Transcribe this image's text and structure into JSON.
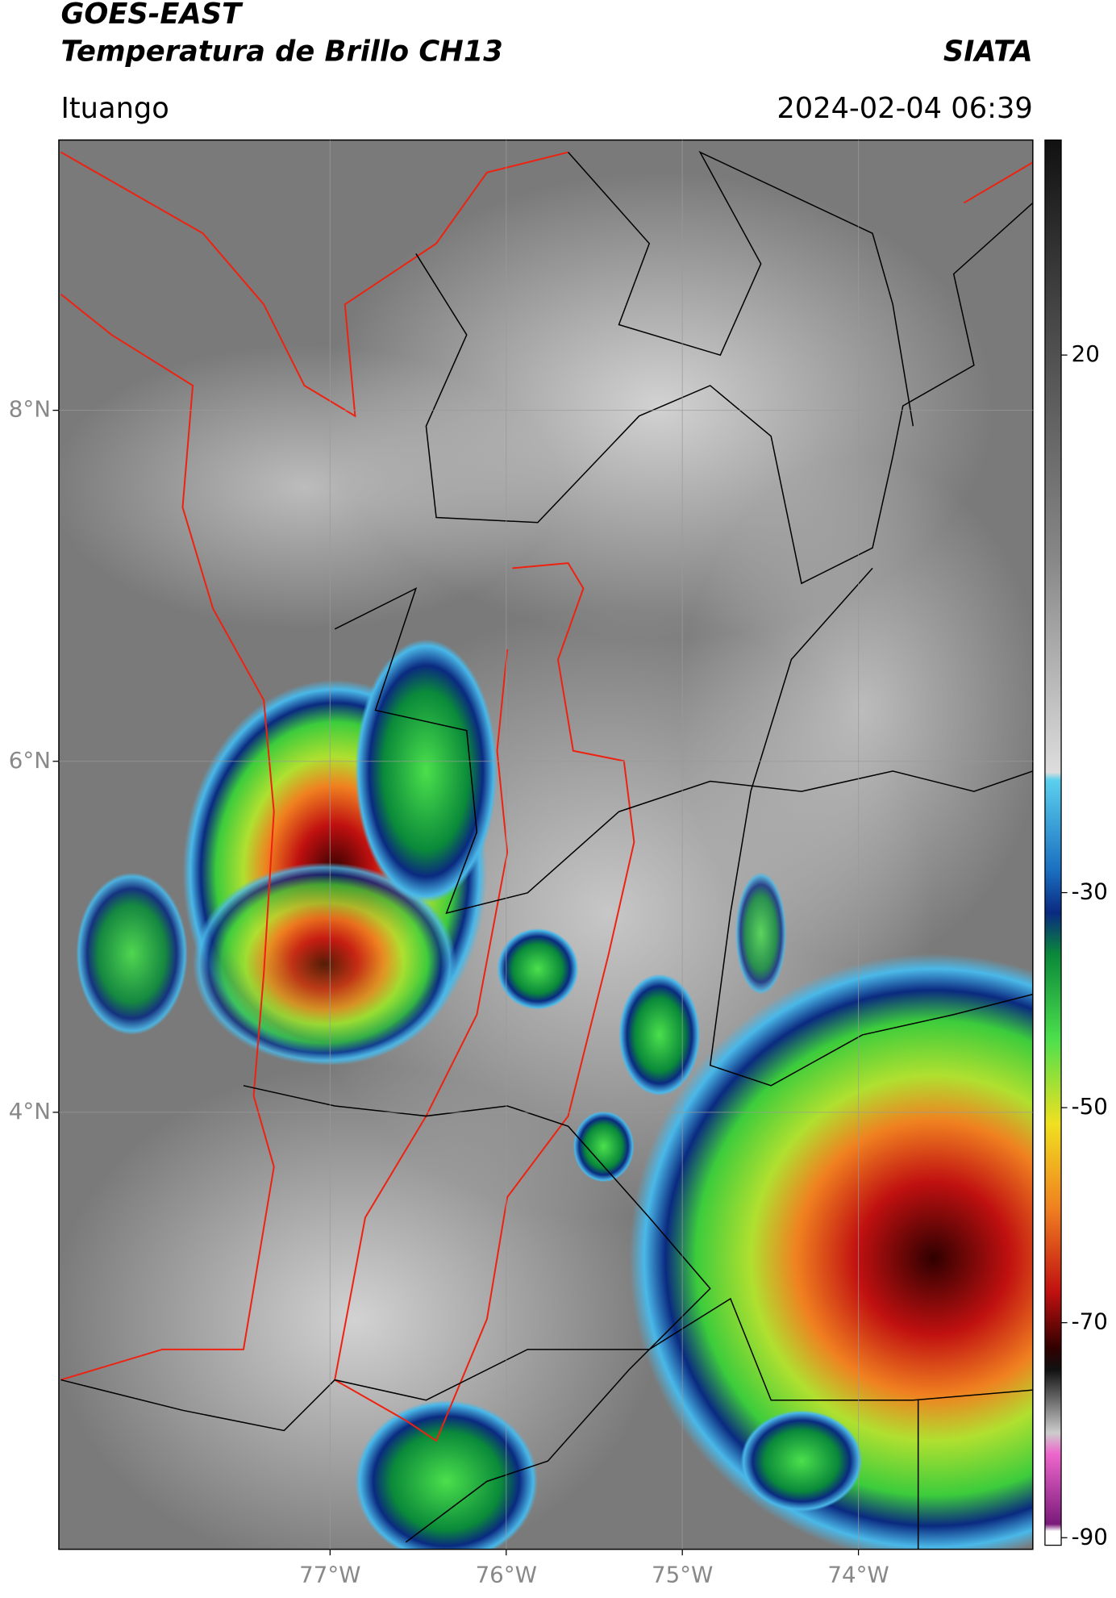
{
  "header": {
    "title": "GOES-EAST",
    "subtitle": "Temperatura de Brillo CH13",
    "brand": "SIATA",
    "location": "Ituango",
    "timestamp": "2024-02-04 06:39"
  },
  "chart_data": {
    "type": "map",
    "xlim": [
      -78.54,
      -73.01
    ],
    "ylim": [
      1.51,
      9.54
    ],
    "xticks": [
      {
        "value": -77,
        "label": "77°W"
      },
      {
        "value": -76,
        "label": "76°W"
      },
      {
        "value": -75,
        "label": "75°W"
      },
      {
        "value": -74,
        "label": "74°W"
      }
    ],
    "yticks": [
      {
        "value": 8,
        "label": "8°N"
      },
      {
        "value": 6,
        "label": "6°N"
      },
      {
        "value": 4,
        "label": "4°N"
      }
    ],
    "grid": true,
    "colorbar": {
      "lim": [
        -90.7,
        40
      ],
      "ticks": [
        20,
        -30,
        -50,
        -70,
        -90
      ]
    }
  }
}
